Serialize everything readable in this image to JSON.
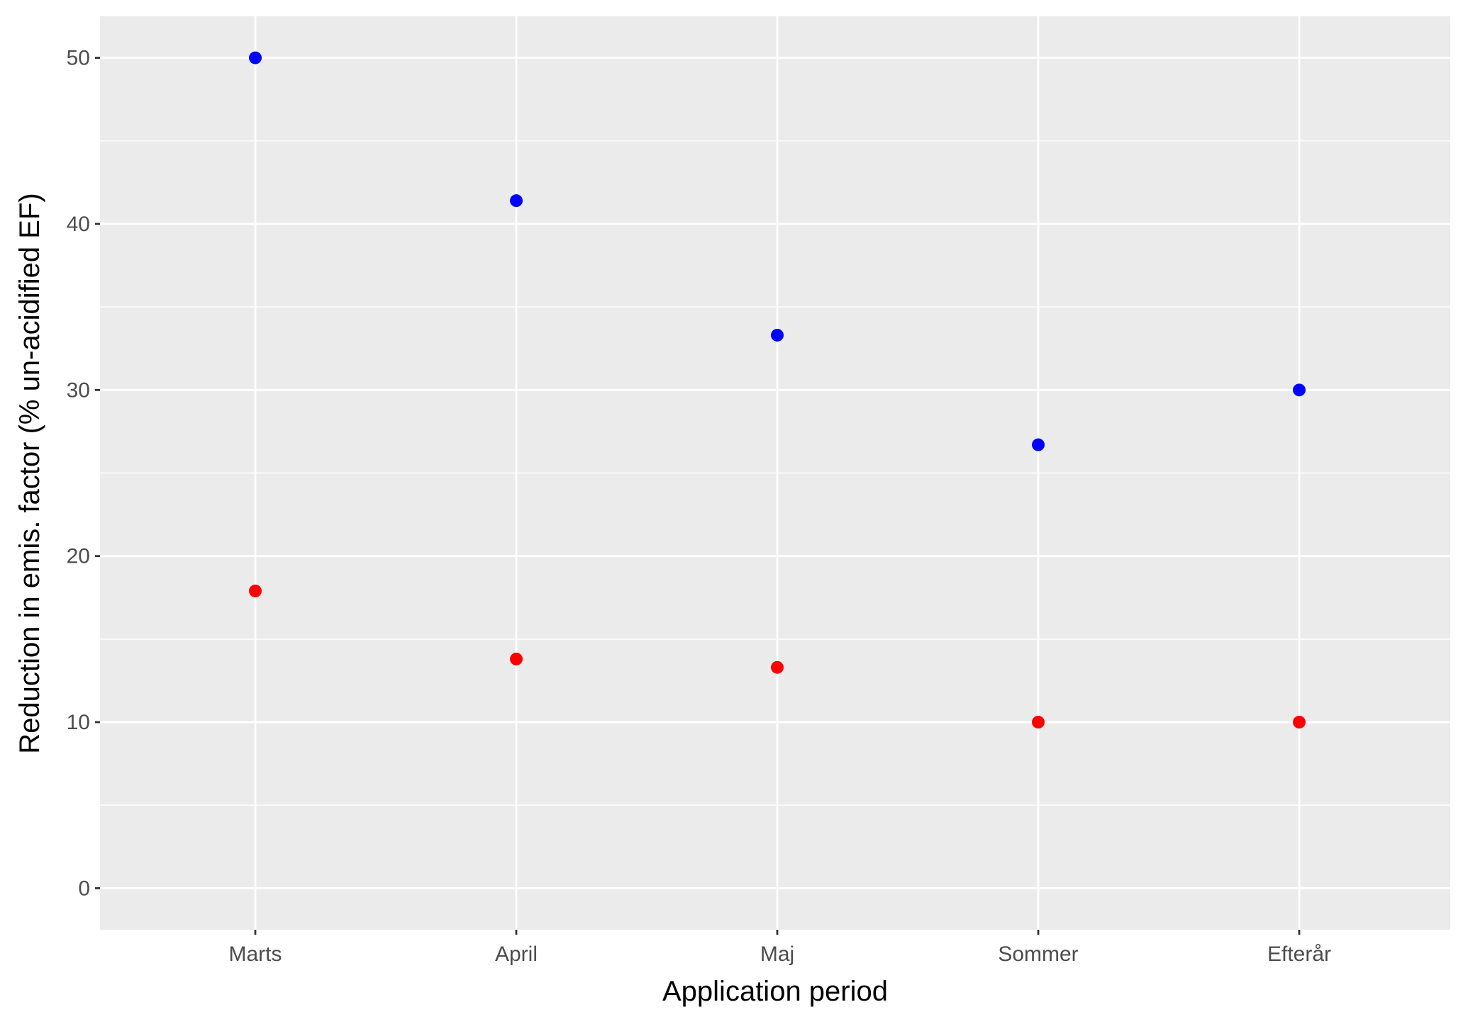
{
  "chart_data": {
    "type": "scatter",
    "title": "",
    "xlabel": "Application period",
    "ylabel": "Reduction in emis. factor (% un-acidified EF)",
    "categories": [
      "Marts",
      "April",
      "Maj",
      "Sommer",
      "Efterår"
    ],
    "ylim": [
      -2.5,
      52.5
    ],
    "yticks": [
      0,
      10,
      20,
      30,
      40,
      50
    ],
    "grid": true,
    "legend": "none",
    "series": [
      {
        "color": "#0000ff",
        "values": [
          50.0,
          41.4,
          33.3,
          26.7,
          30.0
        ]
      },
      {
        "color": "#ff0000",
        "values": [
          17.9,
          13.8,
          13.3,
          10.0,
          10.0
        ]
      }
    ]
  },
  "colors": {
    "panel_background": "#ebebeb",
    "grid_line": "#ffffff",
    "tick_text": "#4d4d4d"
  }
}
